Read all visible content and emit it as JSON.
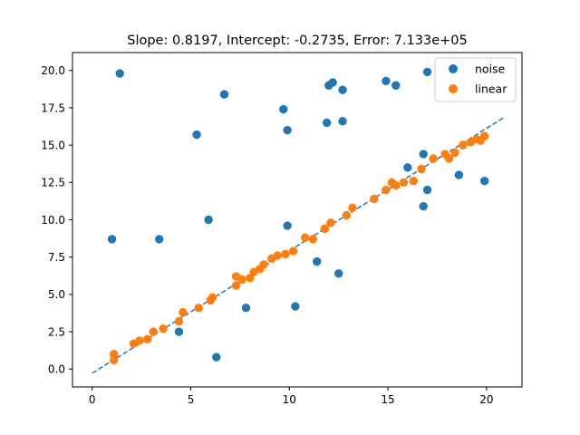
{
  "chart_data": {
    "type": "scatter",
    "title": "Slope: 0.8197, Intercept: -0.2735, Error: 7.133e+05",
    "xlabel": "",
    "ylabel": "",
    "xlim": [
      -1.0,
      21.8
    ],
    "ylim": [
      -1.2,
      21.2
    ],
    "x_ticks": [
      0,
      5,
      10,
      15,
      20
    ],
    "x_tick_labels": [
      "0",
      "5",
      "10",
      "15",
      "20"
    ],
    "y_ticks": [
      0.0,
      2.5,
      5.0,
      7.5,
      10.0,
      12.5,
      15.0,
      17.5,
      20.0
    ],
    "y_tick_labels": [
      "0.0",
      "2.5",
      "5.0",
      "7.5",
      "10.0",
      "12.5",
      "15.0",
      "17.5",
      "20.0"
    ],
    "grid": false,
    "legend_position": "top-right",
    "series": [
      {
        "name": "noise",
        "color": "#1f77b4",
        "points": [
          [
            1.4,
            19.8
          ],
          [
            1.0,
            8.7
          ],
          [
            3.4,
            8.7
          ],
          [
            4.4,
            2.5
          ],
          [
            5.3,
            15.7
          ],
          [
            5.9,
            10.0
          ],
          [
            6.3,
            0.8
          ],
          [
            6.7,
            18.4
          ],
          [
            7.8,
            4.1
          ],
          [
            9.7,
            17.4
          ],
          [
            9.9,
            16.0
          ],
          [
            9.9,
            9.6
          ],
          [
            10.3,
            4.2
          ],
          [
            11.4,
            7.2
          ],
          [
            11.9,
            16.5
          ],
          [
            12.0,
            19.0
          ],
          [
            12.2,
            19.2
          ],
          [
            12.5,
            6.4
          ],
          [
            12.7,
            16.6
          ],
          [
            12.7,
            18.7
          ],
          [
            14.9,
            19.3
          ],
          [
            15.4,
            19.0
          ],
          [
            16.0,
            13.5
          ],
          [
            16.8,
            14.4
          ],
          [
            16.8,
            10.9
          ],
          [
            17.0,
            12.0
          ],
          [
            17.0,
            19.9
          ],
          [
            18.6,
            13.0
          ],
          [
            19.9,
            12.6
          ]
        ]
      },
      {
        "name": "linear",
        "color": "#ff7f0e",
        "points": [
          [
            1.1,
            0.6
          ],
          [
            1.1,
            1.0
          ],
          [
            2.1,
            1.7
          ],
          [
            2.4,
            1.9
          ],
          [
            2.8,
            2.0
          ],
          [
            3.1,
            2.5
          ],
          [
            3.6,
            2.7
          ],
          [
            4.4,
            3.2
          ],
          [
            4.6,
            3.8
          ],
          [
            5.4,
            4.1
          ],
          [
            6.0,
            4.6
          ],
          [
            6.1,
            4.8
          ],
          [
            7.3,
            5.6
          ],
          [
            7.3,
            6.2
          ],
          [
            7.6,
            6.0
          ],
          [
            8.0,
            6.1
          ],
          [
            8.2,
            6.5
          ],
          [
            8.5,
            6.7
          ],
          [
            8.7,
            7.0
          ],
          [
            9.1,
            7.4
          ],
          [
            9.4,
            7.6
          ],
          [
            9.8,
            7.7
          ],
          [
            10.2,
            7.9
          ],
          [
            10.8,
            8.8
          ],
          [
            11.2,
            8.7
          ],
          [
            11.8,
            9.4
          ],
          [
            12.1,
            9.8
          ],
          [
            12.9,
            10.3
          ],
          [
            13.2,
            10.8
          ],
          [
            14.3,
            11.4
          ],
          [
            14.9,
            12.0
          ],
          [
            15.2,
            12.5
          ],
          [
            15.4,
            12.3
          ],
          [
            15.8,
            12.5
          ],
          [
            16.3,
            12.6
          ],
          [
            16.7,
            13.4
          ],
          [
            17.3,
            14.1
          ],
          [
            17.9,
            14.4
          ],
          [
            18.1,
            14.1
          ],
          [
            18.4,
            14.5
          ],
          [
            18.8,
            15.0
          ],
          [
            19.2,
            15.2
          ],
          [
            19.5,
            15.4
          ],
          [
            19.7,
            15.3
          ],
          [
            19.9,
            15.6
          ]
        ]
      }
    ],
    "fit_line": {
      "slope": 0.8197,
      "intercept": -0.2735,
      "x_range": [
        0.0,
        20.9
      ],
      "color": "#1f77b4",
      "style": "dashed"
    }
  }
}
